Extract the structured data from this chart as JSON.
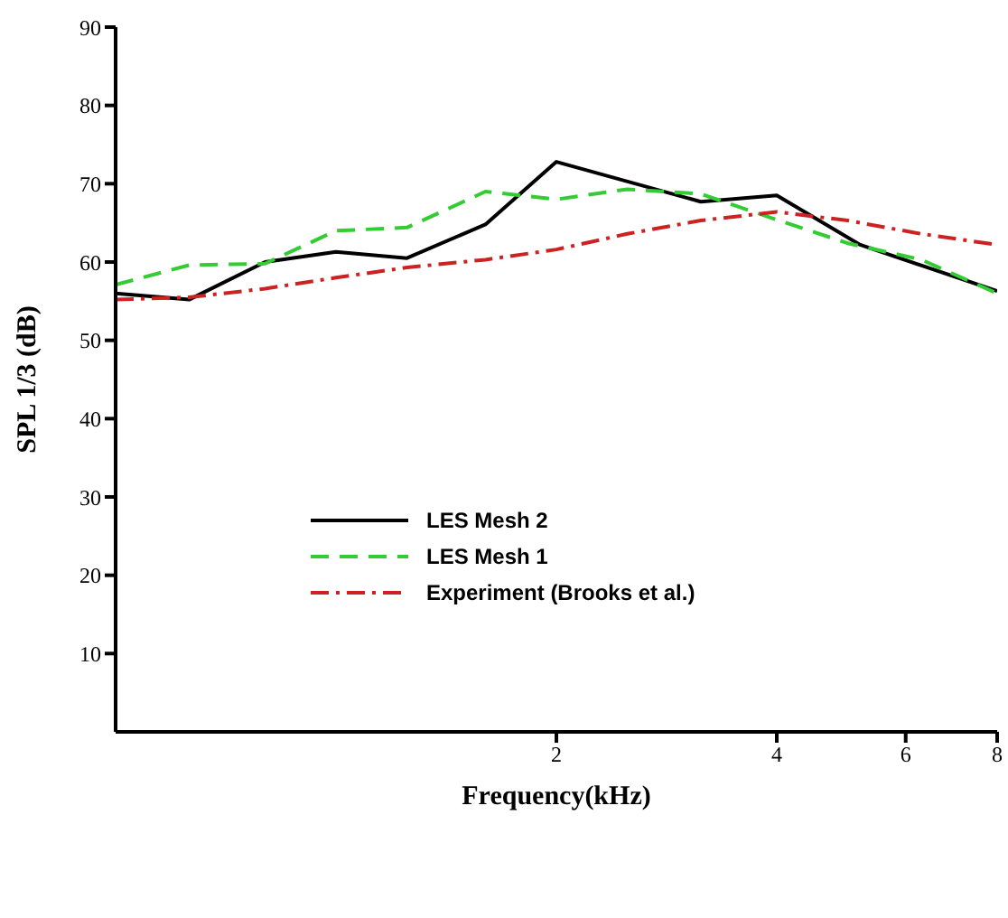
{
  "chart_data": {
    "type": "line",
    "xlabel": "Frequency(kHz)",
    "ylabel": "SPL 1/3 (dB)",
    "log": "x",
    "xlim": [
      0.5,
      8
    ],
    "xticks": [
      2,
      4,
      6,
      8
    ],
    "ylim": [
      0,
      90
    ],
    "yticks": [
      10,
      20,
      30,
      40,
      50,
      60,
      70,
      80,
      90
    ],
    "grid": false,
    "legend": "center left",
    "marker": "none",
    "series": [
      {
        "name": "LES Mesh 2",
        "color": "#000000",
        "line_style": "solid",
        "x": [
          0.5,
          0.63,
          0.8,
          1.0,
          1.25,
          1.6,
          2.0,
          3.15,
          4.0,
          5.2,
          8.0
        ],
        "values": [
          56.0,
          55.2,
          60.0,
          61.3,
          60.5,
          64.8,
          72.8,
          67.7,
          68.5,
          62.2,
          56.3
        ]
      },
      {
        "name": "LES Mesh 1",
        "color": "#33cc33",
        "line_style": "dashed",
        "x": [
          0.5,
          0.63,
          0.8,
          1.0,
          1.25,
          1.6,
          2.0,
          2.5,
          3.15,
          4.0,
          5.0,
          6.3,
          8.0
        ],
        "values": [
          57.1,
          59.6,
          59.8,
          64.0,
          64.4,
          69.0,
          68.0,
          69.3,
          68.7,
          65.4,
          62.4,
          60.3,
          56.0
        ]
      },
      {
        "name": "Experiment (Brooks et al.)",
        "color": "#cc2222",
        "line_style": "dashdot",
        "x": [
          0.5,
          0.63,
          0.8,
          1.0,
          1.25,
          1.6,
          2.0,
          2.5,
          3.15,
          4.0,
          5.0,
          6.3,
          8.0
        ],
        "values": [
          55.2,
          55.5,
          56.6,
          58.0,
          59.3,
          60.3,
          61.6,
          63.6,
          65.3,
          66.4,
          65.3,
          63.6,
          62.2
        ]
      }
    ]
  }
}
